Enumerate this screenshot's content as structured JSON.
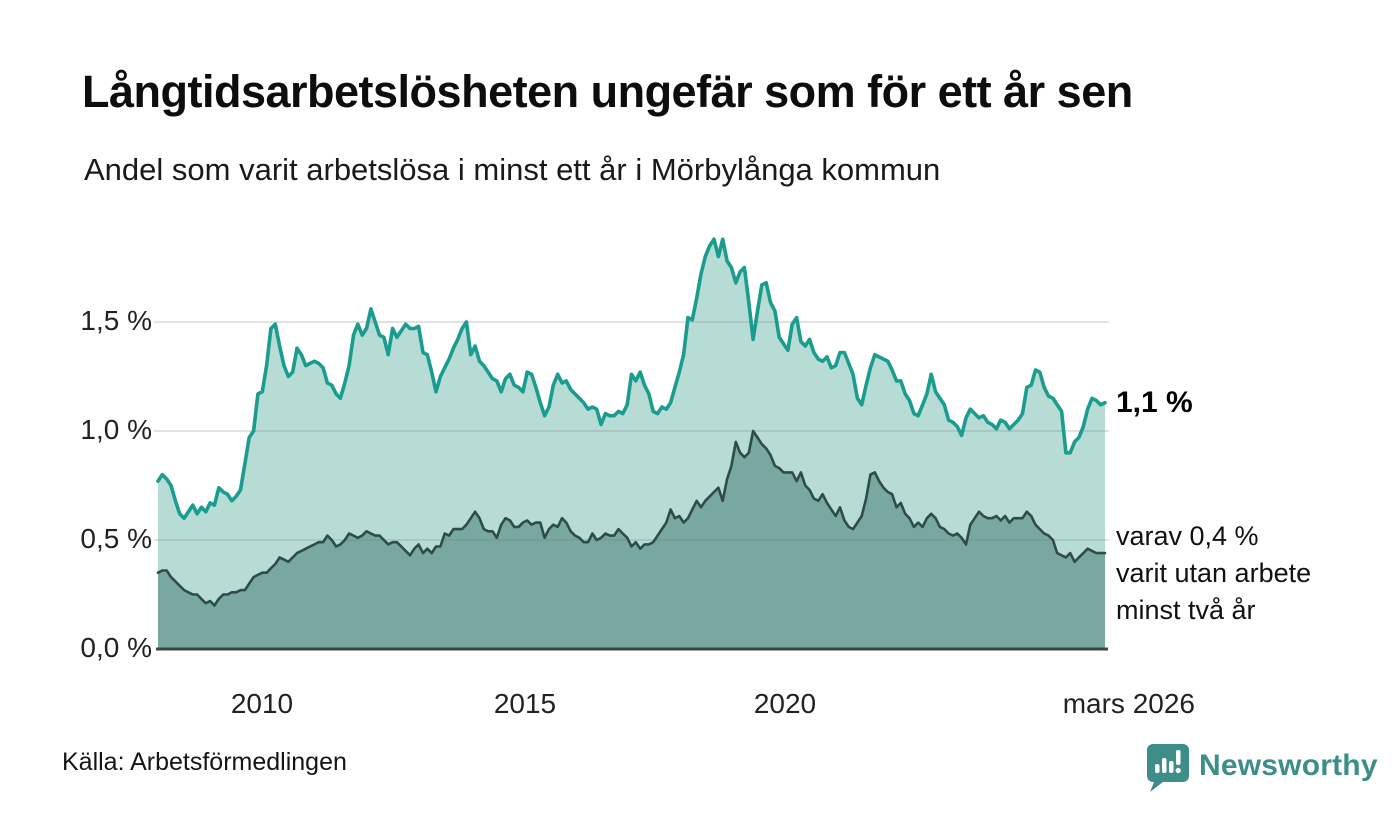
{
  "header": {
    "title": "Långtidsarbetslösheten ungefär som för ett år sen",
    "subtitle": "Andel som varit arbetslösa i minst ett år i Mörbylånga kommun"
  },
  "footer": {
    "source": "Källa: Arbetsförmedlingen",
    "brand": "Newsworthy"
  },
  "colors": {
    "line_1yr": "#1a9c8e",
    "fill_1yr": "#b7dcd6",
    "line_2yr": "#2e4d48",
    "fill_2yr": "#79a8a0",
    "axis": "#3a4743",
    "gridline": "rgba(120,120,120,0.28)",
    "brand_teal": "#3d8e88",
    "text": "#111111"
  },
  "chart_data": {
    "type": "area",
    "title": "Andel som varit arbetslösa i minst ett år i Mörbylånga kommun",
    "x_start": "2008-01",
    "x_end": "2026-03",
    "step_months": 1,
    "ylim": [
      0,
      1.95
    ],
    "grid": true,
    "y_axis": {
      "ticks": [
        {
          "label": "0,0 %",
          "value": 0
        },
        {
          "label": "0,5 %",
          "value": 0.5
        },
        {
          "label": "1,0 %",
          "value": 1.0
        },
        {
          "label": "1,5 %",
          "value": 1.5
        }
      ]
    },
    "x_axis": {
      "ticks": [
        {
          "label": "2010"
        },
        {
          "label": "2015"
        },
        {
          "label": "2020"
        },
        {
          "label": "mars 2026"
        }
      ]
    },
    "annotation_right": {
      "value_label": "1,1 %",
      "lines": [
        "varav 0,4 %",
        "varit utan arbete",
        "minst två år"
      ]
    },
    "series": [
      {
        "name": "Andel arbetslösa minst ett år",
        "end_value": "1,1 %",
        "values": [
          0.77,
          0.8,
          0.78,
          0.75,
          0.68,
          0.62,
          0.6,
          0.63,
          0.66,
          0.62,
          0.65,
          0.63,
          0.67,
          0.66,
          0.74,
          0.72,
          0.71,
          0.68,
          0.7,
          0.73,
          0.85,
          0.97,
          1.0,
          1.17,
          1.18,
          1.3,
          1.47,
          1.49,
          1.39,
          1.3,
          1.25,
          1.27,
          1.38,
          1.35,
          1.3,
          1.31,
          1.32,
          1.31,
          1.29,
          1.22,
          1.21,
          1.17,
          1.15,
          1.22,
          1.3,
          1.44,
          1.49,
          1.44,
          1.47,
          1.56,
          1.5,
          1.44,
          1.43,
          1.35,
          1.47,
          1.43,
          1.46,
          1.49,
          1.47,
          1.47,
          1.48,
          1.36,
          1.35,
          1.27,
          1.18,
          1.25,
          1.29,
          1.33,
          1.38,
          1.42,
          1.47,
          1.5,
          1.35,
          1.39,
          1.32,
          1.3,
          1.27,
          1.24,
          1.23,
          1.18,
          1.24,
          1.26,
          1.21,
          1.2,
          1.18,
          1.27,
          1.26,
          1.2,
          1.13,
          1.07,
          1.11,
          1.21,
          1.26,
          1.22,
          1.23,
          1.19,
          1.17,
          1.15,
          1.13,
          1.1,
          1.11,
          1.1,
          1.03,
          1.08,
          1.07,
          1.07,
          1.09,
          1.08,
          1.12,
          1.26,
          1.23,
          1.27,
          1.21,
          1.17,
          1.09,
          1.08,
          1.11,
          1.1,
          1.13,
          1.2,
          1.27,
          1.35,
          1.52,
          1.51,
          1.61,
          1.72,
          1.8,
          1.85,
          1.88,
          1.8,
          1.88,
          1.78,
          1.75,
          1.68,
          1.73,
          1.75,
          1.59,
          1.42,
          1.55,
          1.67,
          1.68,
          1.59,
          1.55,
          1.43,
          1.4,
          1.37,
          1.49,
          1.52,
          1.41,
          1.39,
          1.42,
          1.36,
          1.33,
          1.32,
          1.34,
          1.29,
          1.3,
          1.36,
          1.36,
          1.31,
          1.26,
          1.15,
          1.12,
          1.21,
          1.29,
          1.35,
          1.34,
          1.33,
          1.32,
          1.28,
          1.23,
          1.23,
          1.17,
          1.14,
          1.08,
          1.07,
          1.12,
          1.17,
          1.26,
          1.18,
          1.15,
          1.12,
          1.05,
          1.04,
          1.02,
          0.98,
          1.06,
          1.1,
          1.08,
          1.06,
          1.07,
          1.04,
          1.03,
          1.01,
          1.05,
          1.04,
          1.01,
          1.03,
          1.05,
          1.08,
          1.2,
          1.21,
          1.28,
          1.27,
          1.2,
          1.16,
          1.15,
          1.12,
          1.09,
          0.9,
          0.9,
          0.95,
          0.97,
          1.02,
          1.1,
          1.15,
          1.14,
          1.12,
          1.13
        ]
      },
      {
        "name": "varav utan arbete minst två år",
        "end_value": "0,4 %",
        "values": [
          0.35,
          0.36,
          0.36,
          0.33,
          0.31,
          0.29,
          0.27,
          0.26,
          0.25,
          0.25,
          0.23,
          0.21,
          0.22,
          0.2,
          0.23,
          0.25,
          0.25,
          0.26,
          0.26,
          0.27,
          0.27,
          0.3,
          0.33,
          0.34,
          0.35,
          0.35,
          0.37,
          0.39,
          0.42,
          0.41,
          0.4,
          0.42,
          0.44,
          0.45,
          0.46,
          0.47,
          0.48,
          0.49,
          0.49,
          0.52,
          0.5,
          0.47,
          0.48,
          0.5,
          0.53,
          0.52,
          0.51,
          0.52,
          0.54,
          0.53,
          0.52,
          0.52,
          0.5,
          0.48,
          0.49,
          0.49,
          0.47,
          0.45,
          0.43,
          0.46,
          0.48,
          0.44,
          0.46,
          0.44,
          0.47,
          0.47,
          0.53,
          0.52,
          0.55,
          0.55,
          0.55,
          0.57,
          0.6,
          0.63,
          0.6,
          0.55,
          0.54,
          0.54,
          0.51,
          0.57,
          0.6,
          0.59,
          0.56,
          0.56,
          0.58,
          0.59,
          0.57,
          0.58,
          0.58,
          0.51,
          0.55,
          0.57,
          0.56,
          0.6,
          0.58,
          0.54,
          0.52,
          0.51,
          0.49,
          0.49,
          0.53,
          0.5,
          0.51,
          0.53,
          0.52,
          0.52,
          0.55,
          0.53,
          0.51,
          0.47,
          0.49,
          0.46,
          0.48,
          0.48,
          0.49,
          0.52,
          0.55,
          0.58,
          0.64,
          0.6,
          0.61,
          0.58,
          0.6,
          0.64,
          0.68,
          0.65,
          0.68,
          0.7,
          0.72,
          0.74,
          0.68,
          0.78,
          0.84,
          0.95,
          0.9,
          0.88,
          0.9,
          1.0,
          0.97,
          0.94,
          0.92,
          0.89,
          0.84,
          0.83,
          0.81,
          0.81,
          0.81,
          0.77,
          0.81,
          0.75,
          0.73,
          0.69,
          0.68,
          0.71,
          0.67,
          0.64,
          0.61,
          0.65,
          0.59,
          0.56,
          0.55,
          0.58,
          0.61,
          0.69,
          0.8,
          0.81,
          0.77,
          0.74,
          0.72,
          0.71,
          0.65,
          0.67,
          0.62,
          0.6,
          0.56,
          0.58,
          0.56,
          0.6,
          0.62,
          0.6,
          0.56,
          0.55,
          0.53,
          0.52,
          0.53,
          0.51,
          0.48,
          0.57,
          0.6,
          0.63,
          0.61,
          0.6,
          0.6,
          0.61,
          0.59,
          0.61,
          0.58,
          0.6,
          0.6,
          0.6,
          0.63,
          0.61,
          0.57,
          0.55,
          0.53,
          0.52,
          0.5,
          0.44,
          0.43,
          0.42,
          0.44,
          0.4,
          0.42,
          0.44,
          0.46,
          0.45,
          0.44,
          0.44,
          0.44
        ]
      }
    ]
  }
}
